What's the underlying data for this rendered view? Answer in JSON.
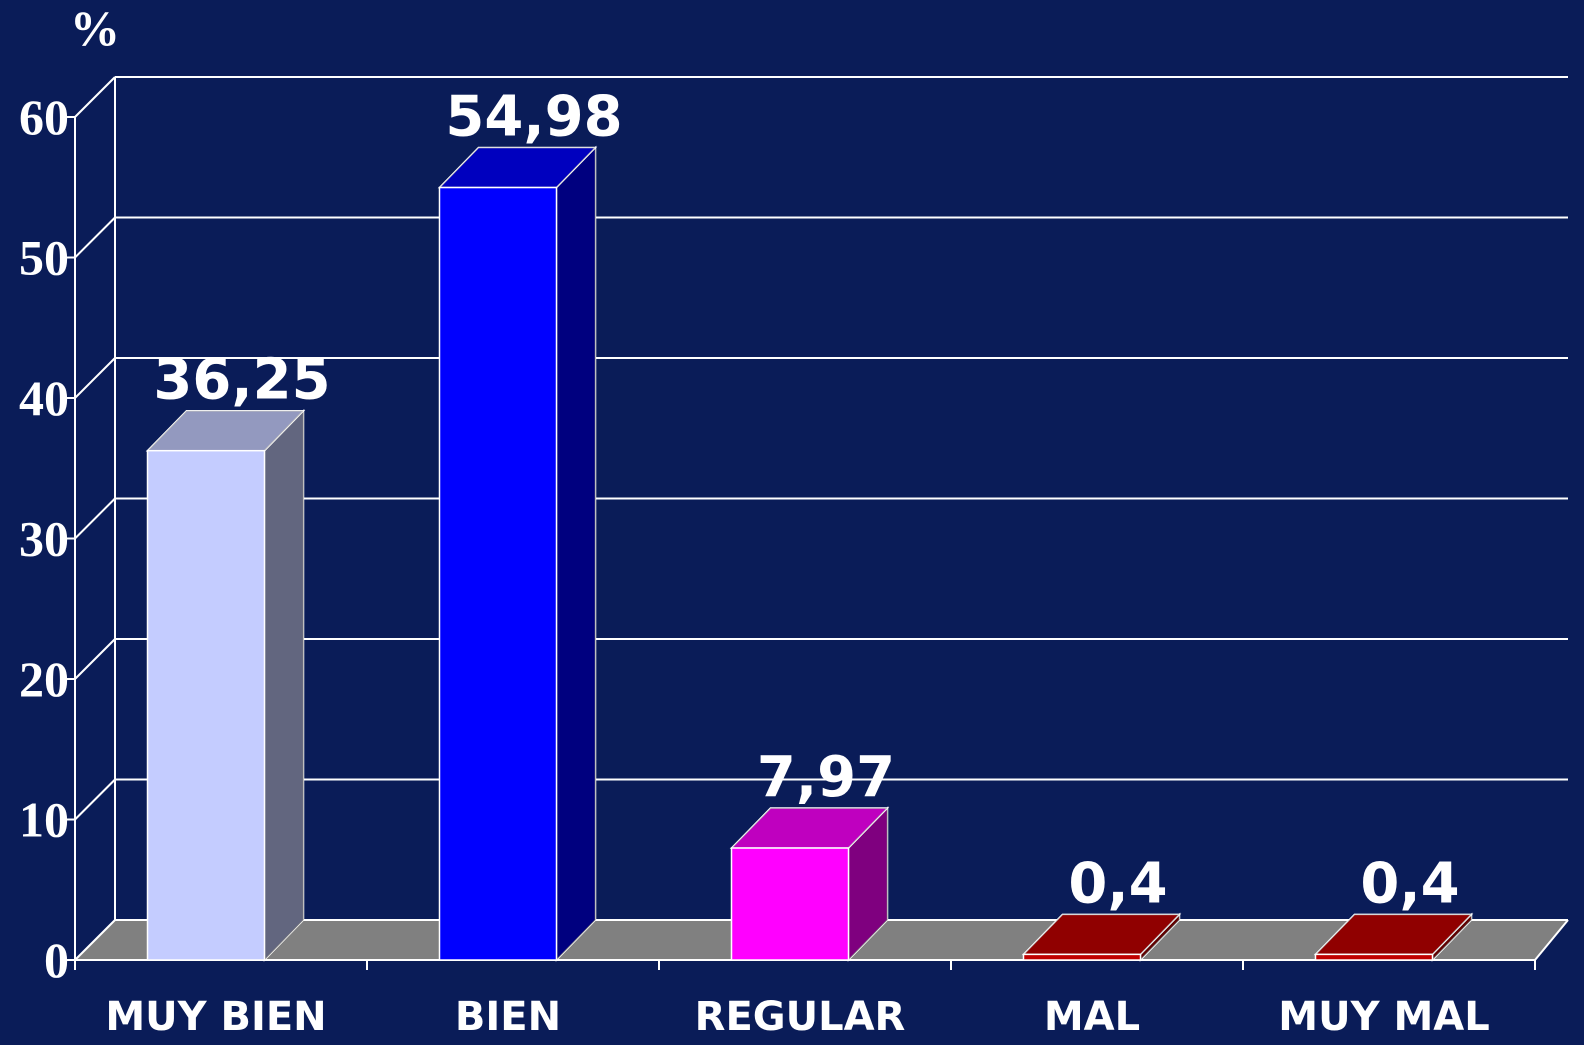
{
  "chart_data": {
    "type": "bar3d",
    "y_axis_label": "%",
    "categories": [
      "MUY BIEN",
      "BIEN",
      "REGULAR",
      "MAL",
      "MUY MAL"
    ],
    "values": [
      36.25,
      54.98,
      7.97,
      0.4,
      0.4
    ],
    "value_labels": [
      "36,25",
      "54,98",
      "7,97",
      "0,4",
      "0,4"
    ],
    "colors": [
      "#c4ccff",
      "#0000ff",
      "#ff00ff",
      "#c00000",
      "#c00000"
    ],
    "ylim": [
      0,
      60
    ],
    "yticks": [
      0,
      10,
      20,
      30,
      40,
      50,
      60
    ],
    "grid": true
  }
}
